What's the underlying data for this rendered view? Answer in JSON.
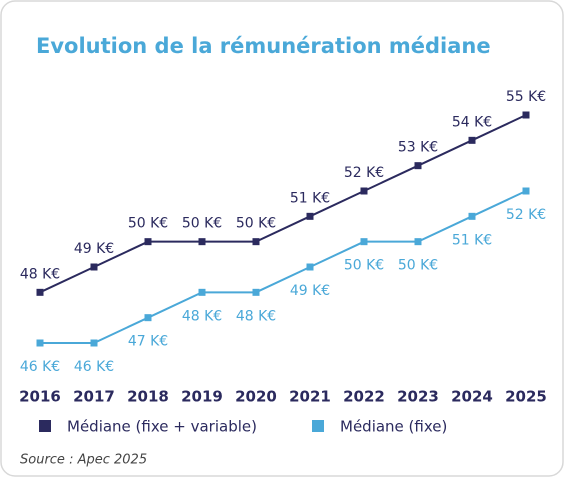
{
  "chart_data": {
    "type": "line",
    "title": "Evolution de la rémunération médiane",
    "categories": [
      "2016",
      "2017",
      "2018",
      "2019",
      "2020",
      "2021",
      "2022",
      "2023",
      "2024",
      "2025"
    ],
    "series": [
      {
        "name": "Médiane (fixe + variable)",
        "color": "#2b2a5e",
        "values": [
          48,
          49,
          50,
          50,
          50,
          51,
          52,
          53,
          54,
          55
        ],
        "value_labels": [
          "48 K€",
          "49 K€",
          "50 K€",
          "50 K€",
          "50 K€",
          "51 K€",
          "52 K€",
          "53 K€",
          "54 K€",
          "55 K€"
        ]
      },
      {
        "name": "Médiane (fixe)",
        "color": "#4aa8d8",
        "values": [
          46,
          46,
          47,
          48,
          48,
          49,
          50,
          50,
          51,
          52
        ],
        "value_labels": [
          "46 K€",
          "46 K€",
          "47 K€",
          "48 K€",
          "48 K€",
          "49 K€",
          "50 K€",
          "50 K€",
          "51 K€",
          "52 K€"
        ]
      }
    ],
    "source": "Source : Apec 2025"
  }
}
